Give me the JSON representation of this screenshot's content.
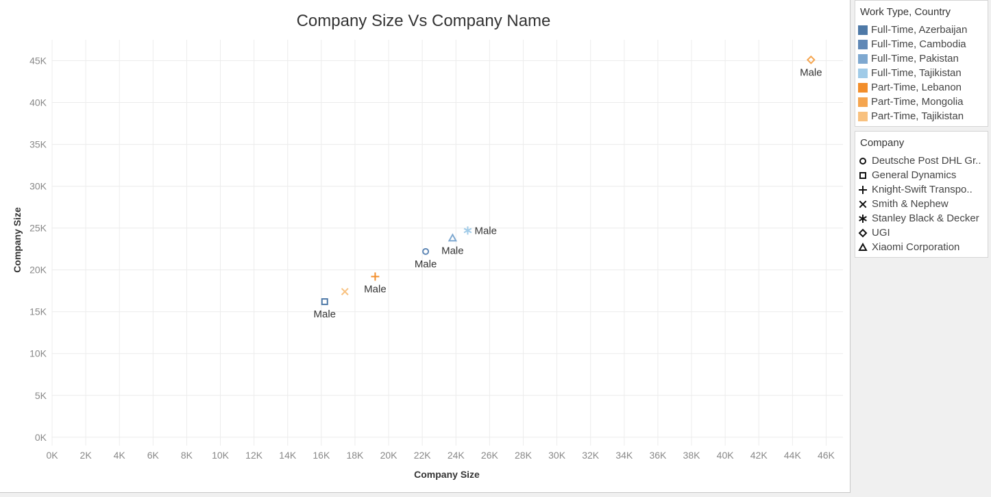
{
  "chart_data": {
    "type": "scatter",
    "title": "Company Size Vs Company Name",
    "xlabel": "Company Size",
    "ylabel": "Company Size",
    "xlim": [
      0,
      47000
    ],
    "ylim": [
      -1000,
      47500
    ],
    "x_ticks": [
      0,
      2000,
      4000,
      6000,
      8000,
      10000,
      12000,
      14000,
      16000,
      18000,
      20000,
      22000,
      24000,
      26000,
      28000,
      30000,
      32000,
      34000,
      36000,
      38000,
      40000,
      42000,
      44000,
      46000
    ],
    "x_tick_labels": [
      "0K",
      "2K",
      "4K",
      "6K",
      "8K",
      "10K",
      "12K",
      "14K",
      "16K",
      "18K",
      "20K",
      "22K",
      "24K",
      "26K",
      "28K",
      "30K",
      "32K",
      "34K",
      "36K",
      "38K",
      "40K",
      "42K",
      "44K",
      "46K"
    ],
    "y_ticks": [
      0,
      5000,
      10000,
      15000,
      20000,
      25000,
      30000,
      35000,
      40000,
      45000
    ],
    "y_tick_labels": [
      "0K",
      "5K",
      "10K",
      "15K",
      "20K",
      "25K",
      "30K",
      "35K",
      "40K",
      "45K"
    ],
    "grid": true,
    "points": [
      {
        "x": 45100,
        "y": 45100,
        "company": "UGI",
        "series": "Part-Time, Mongolia",
        "label": "Male",
        "label_pos": "below"
      },
      {
        "x": 24700,
        "y": 24700,
        "company": "Stanley Black & Decker",
        "series": "Full-Time, Tajikistan",
        "label": "Male",
        "label_pos": "right"
      },
      {
        "x": 23800,
        "y": 23800,
        "company": "Xiaomi Corporation",
        "series": "Full-Time, Pakistan",
        "label": "Male",
        "label_pos": "below"
      },
      {
        "x": 22200,
        "y": 22200,
        "company": "Deutsche Post DHL Group",
        "series": "Full-Time, Cambodia",
        "label": "Male",
        "label_pos": "below"
      },
      {
        "x": 19200,
        "y": 19200,
        "company": "Knight-Swift Transportation",
        "series": "Part-Time, Lebanon",
        "label": "Male",
        "label_pos": "below"
      },
      {
        "x": 17400,
        "y": 17400,
        "company": "Smith & Nephew",
        "series": "Part-Time, Tajikistan",
        "label": "",
        "label_pos": "none"
      },
      {
        "x": 16200,
        "y": 16200,
        "company": "General Dynamics",
        "series": "Full-Time, Azerbaijan",
        "label": "Male",
        "label_pos": "below"
      }
    ]
  },
  "legend_color": {
    "title": "Work Type, Country",
    "items": [
      {
        "label": "Full-Time, Azerbaijan",
        "color": "#4e79a7"
      },
      {
        "label": "Full-Time, Cambodia",
        "color": "#6088b6"
      },
      {
        "label": "Full-Time, Pakistan",
        "color": "#7ea8d0"
      },
      {
        "label": "Full-Time, Tajikistan",
        "color": "#a0cbe8"
      },
      {
        "label": "Part-Time, Lebanon",
        "color": "#f28e2b"
      },
      {
        "label": "Part-Time, Mongolia",
        "color": "#f5a54f"
      },
      {
        "label": "Part-Time, Tajikistan",
        "color": "#f8c17f"
      }
    ]
  },
  "legend_shape": {
    "title": "Company",
    "items": [
      {
        "label": "Deutsche Post DHL Gr..",
        "shape": "circle-icon"
      },
      {
        "label": "General Dynamics",
        "shape": "square-icon"
      },
      {
        "label": "Knight-Swift Transpo..",
        "shape": "plus-icon"
      },
      {
        "label": "Smith & Nephew",
        "shape": "x-icon"
      },
      {
        "label": "Stanley Black & Decker",
        "shape": "asterisk-icon"
      },
      {
        "label": "UGI",
        "shape": "diamond-icon"
      },
      {
        "label": "Xiaomi Corporation",
        "shape": "triangle-icon"
      }
    ]
  }
}
